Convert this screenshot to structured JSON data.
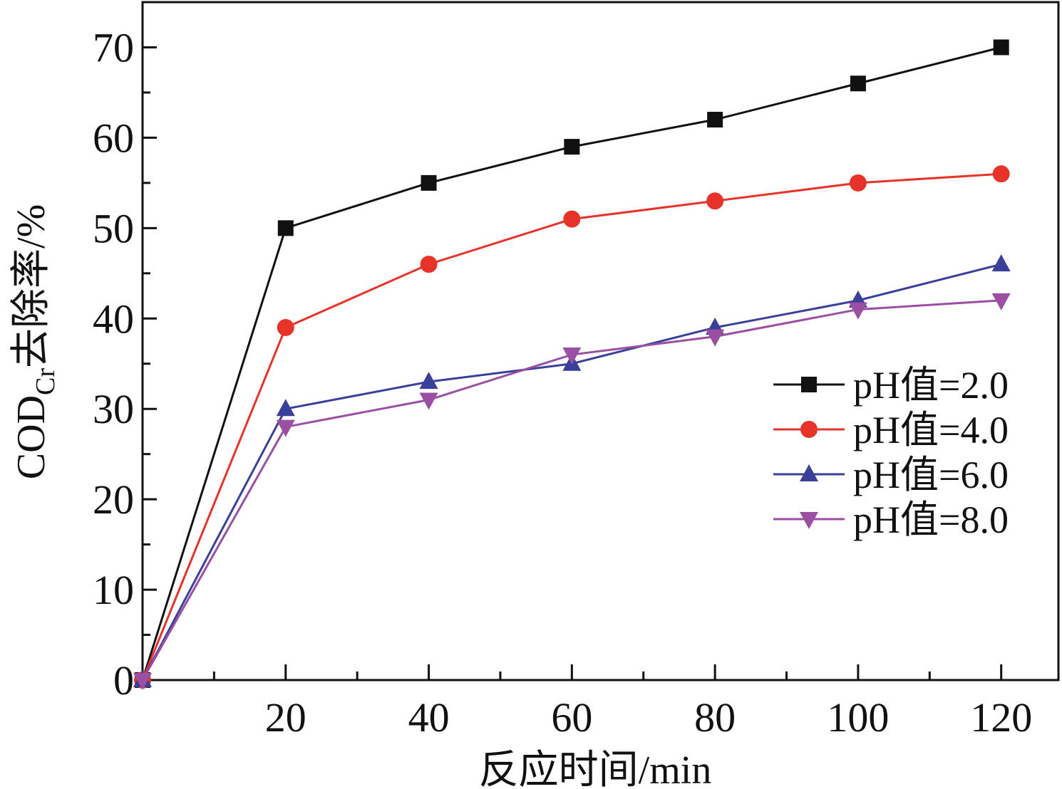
{
  "chart_data": {
    "type": "line",
    "xlabel": "反应时间/min",
    "ylabel_main": "COD",
    "ylabel_sub": "Cr",
    "ylabel_tail": "去除率/%",
    "xlim": [
      0,
      128
    ],
    "ylim": [
      0,
      75
    ],
    "x_ticks": [
      20,
      40,
      60,
      80,
      100,
      120
    ],
    "y_ticks": [
      0,
      10,
      20,
      30,
      40,
      50,
      60,
      70
    ],
    "x": [
      0,
      20,
      40,
      60,
      80,
      100,
      120
    ],
    "series": [
      {
        "name": "pH值=2.0",
        "marker": "square",
        "color": "#111111",
        "values": [
          0,
          50,
          55,
          59,
          62,
          66,
          70
        ]
      },
      {
        "name": "pH值=4.0",
        "marker": "circle",
        "color": "#e8332a",
        "values": [
          0,
          39,
          46,
          51,
          53,
          55,
          56
        ]
      },
      {
        "name": "pH值=6.0",
        "marker": "triangle-up",
        "color": "#3a3f9a",
        "values": [
          0,
          30,
          33,
          35,
          39,
          42,
          46
        ]
      },
      {
        "name": "pH值=8.0",
        "marker": "triangle-down",
        "color": "#9b4fa3",
        "values": [
          0,
          28,
          31,
          36,
          38,
          41,
          42
        ]
      }
    ],
    "legend_position": "right"
  }
}
